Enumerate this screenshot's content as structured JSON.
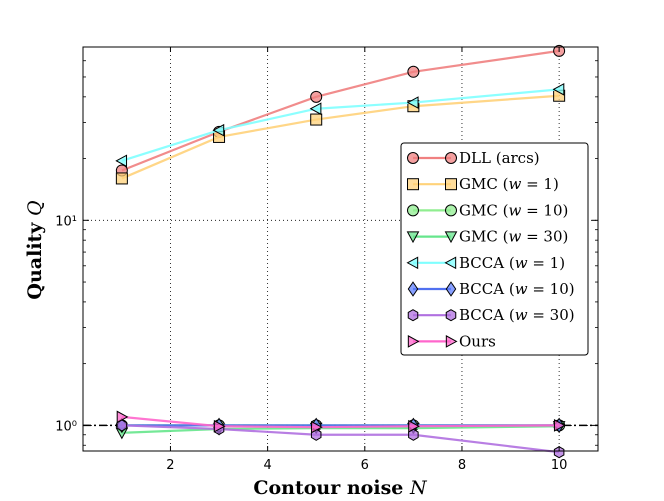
{
  "chart_data": {
    "type": "line",
    "yscale": "log",
    "title": "",
    "xlabel_text": "Contour noise ",
    "xlabel_var": "N",
    "ylabel_text": "Quality ",
    "ylabel_var": "Q",
    "xlim": [
      0.2,
      10.8
    ],
    "ylim": [
      0.75,
      70
    ],
    "x_ticks": [
      2,
      4,
      6,
      8,
      10
    ],
    "x_tick_labels": [
      "2",
      "4",
      "6",
      "8",
      "10"
    ],
    "y_ticks": [
      1,
      10
    ],
    "y_tick_labels": [
      "10⁰",
      "10¹"
    ],
    "reference_line": {
      "y": 1.0,
      "style": "dash-dot",
      "color": "#000000"
    },
    "grid": true,
    "legend_position": "center-right",
    "x": [
      1,
      3,
      5,
      7,
      10
    ],
    "series": [
      {
        "name": "DLL (arcs)",
        "label": "DLL (arcs)",
        "marker": "circle",
        "color": "#f08080",
        "fill": "#f08080",
        "values": [
          17.5,
          27,
          40,
          53,
          67
        ]
      },
      {
        "name": "GMC (w=1)",
        "label": "GMC ( w = 1)",
        "marker": "square",
        "color": "#ffd27a",
        "fill": "#ffd27a",
        "values": [
          16,
          25.5,
          31,
          36,
          40.5
        ]
      },
      {
        "name": "GMC (w=10)",
        "label": "GMC ( w = 10)",
        "marker": "circle",
        "color": "#90ee90",
        "fill": "#90ee90",
        "values": [
          1.0,
          1.0,
          1.0,
          1.0,
          1.0
        ]
      },
      {
        "name": "GMC (w=30)",
        "label": "GMC ( w = 30)",
        "marker": "triangle-down",
        "color": "#66e68c",
        "fill": "#66e68c",
        "values": [
          0.92,
          0.96,
          0.97,
          0.97,
          0.99
        ]
      },
      {
        "name": "BCCA (w=1)",
        "label": "BCCA ( w = 1)",
        "marker": "triangle-left",
        "color": "#7fffff",
        "fill": "#7fffff",
        "values": [
          19.5,
          27.5,
          35,
          37.5,
          43.5
        ]
      },
      {
        "name": "BCCA (w=10)",
        "label": "BCCA ( w = 10)",
        "marker": "diamond",
        "color": "#5070f0",
        "fill": "#6080ff",
        "values": [
          1.0,
          1.0,
          1.0,
          1.0,
          1.0
        ]
      },
      {
        "name": "BCCA (w=30)",
        "label": "BCCA ( w = 30)",
        "marker": "hexagon",
        "color": "#b070e0",
        "fill": "#b070e0",
        "values": [
          1.0,
          0.96,
          0.9,
          0.9,
          0.74
        ]
      },
      {
        "name": "Ours",
        "label": "Ours",
        "marker": "triangle-right",
        "color": "#ff66cc",
        "fill": "#ff66cc",
        "values": [
          1.1,
          0.99,
          0.98,
          0.99,
          1.0
        ]
      }
    ]
  }
}
